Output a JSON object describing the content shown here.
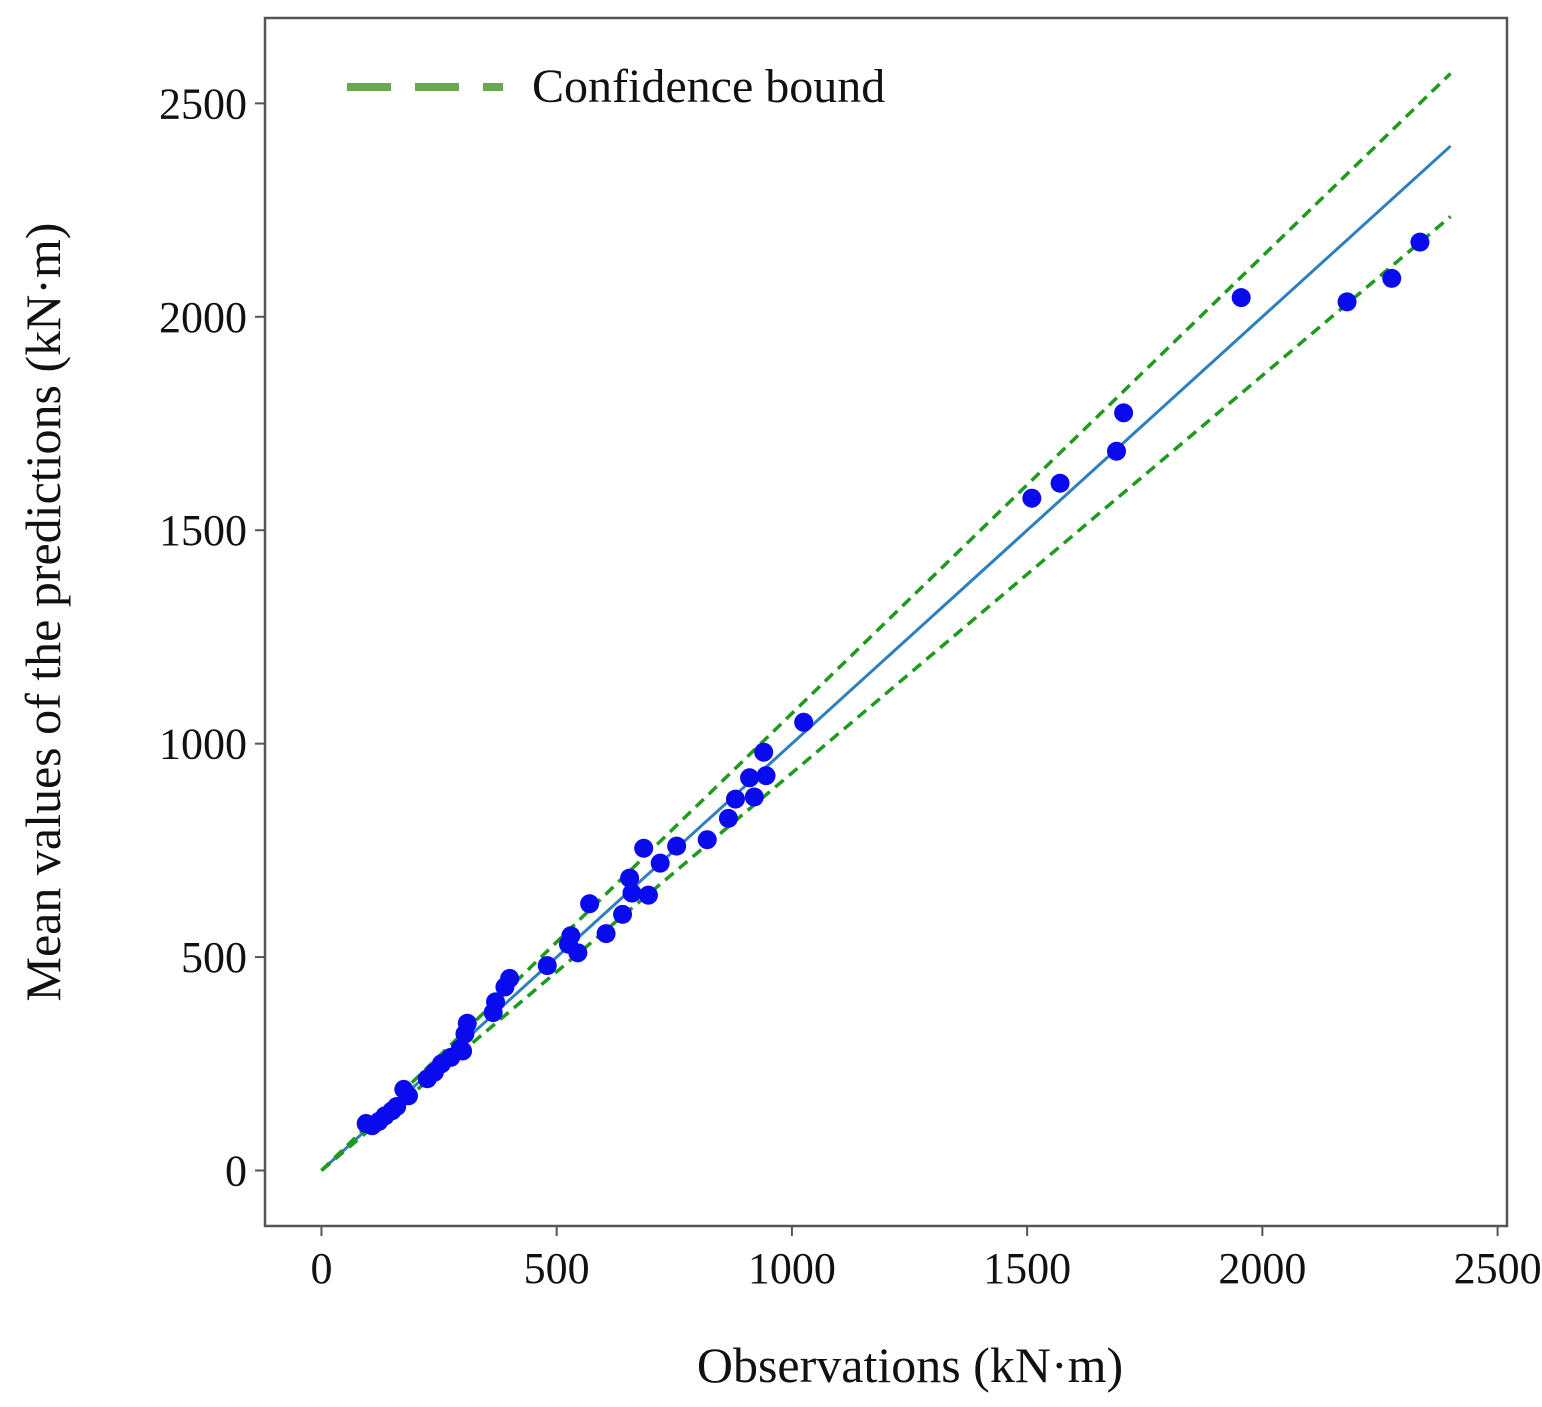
{
  "chart_data": {
    "type": "scatter",
    "title": "",
    "xlabel": "Observations (kN·m)",
    "ylabel": "Mean values of the predictions (kN·m)",
    "xlim": [
      -120,
      2520
    ],
    "ylim": [
      -130,
      2700
    ],
    "xticks": [
      0,
      500,
      1000,
      1500,
      2000,
      2500
    ],
    "yticks": [
      0,
      500,
      1000,
      1500,
      2000,
      2500
    ],
    "xtick_labels": [
      "0",
      "500",
      "1000",
      "1500",
      "2000",
      "2500"
    ],
    "ytick_labels": [
      "0",
      "500",
      "1000",
      "1500",
      "2000",
      "2500"
    ],
    "grid": false,
    "legend": {
      "position": "top-left",
      "entries": [
        {
          "label": "Confidence bound",
          "style": "dashed",
          "color": "#6aa84f"
        }
      ]
    },
    "lines": [
      {
        "name": "Fit line",
        "x": [
          0,
          2400
        ],
        "y": [
          0,
          2400
        ],
        "color": "#2e7fc0",
        "style": "solid"
      },
      {
        "name": "Upper confidence bound",
        "x": [
          0,
          2400
        ],
        "y": [
          0,
          2570
        ],
        "color": "#1f9a1f",
        "style": "dashed"
      },
      {
        "name": "Lower confidence bound",
        "x": [
          0,
          2400
        ],
        "y": [
          0,
          2235
        ],
        "color": "#1f9a1f",
        "style": "dashed"
      }
    ],
    "series": [
      {
        "name": "Mean predictions",
        "color": "#0a0aee",
        "points": [
          [
            95,
            110
          ],
          [
            108,
            105
          ],
          [
            122,
            115
          ],
          [
            135,
            128
          ],
          [
            150,
            140
          ],
          [
            160,
            150
          ],
          [
            175,
            190
          ],
          [
            185,
            175
          ],
          [
            225,
            215
          ],
          [
            240,
            230
          ],
          [
            255,
            250
          ],
          [
            275,
            265
          ],
          [
            295,
            285
          ],
          [
            300,
            280
          ],
          [
            305,
            320
          ],
          [
            310,
            345
          ],
          [
            365,
            370
          ],
          [
            370,
            395
          ],
          [
            390,
            430
          ],
          [
            400,
            450
          ],
          [
            480,
            480
          ],
          [
            525,
            530
          ],
          [
            530,
            550
          ],
          [
            545,
            510
          ],
          [
            570,
            625
          ],
          [
            605,
            555
          ],
          [
            640,
            600
          ],
          [
            655,
            685
          ],
          [
            660,
            650
          ],
          [
            685,
            755
          ],
          [
            695,
            645
          ],
          [
            720,
            720
          ],
          [
            755,
            760
          ],
          [
            820,
            775
          ],
          [
            865,
            825
          ],
          [
            880,
            870
          ],
          [
            910,
            920
          ],
          [
            920,
            875
          ],
          [
            940,
            980
          ],
          [
            945,
            925
          ],
          [
            1025,
            1050
          ],
          [
            1510,
            1575
          ],
          [
            1570,
            1610
          ],
          [
            1690,
            1685
          ],
          [
            1705,
            1775
          ],
          [
            1955,
            2045
          ],
          [
            2180,
            2035
          ],
          [
            2275,
            2090
          ],
          [
            2335,
            2175
          ]
        ]
      }
    ]
  }
}
